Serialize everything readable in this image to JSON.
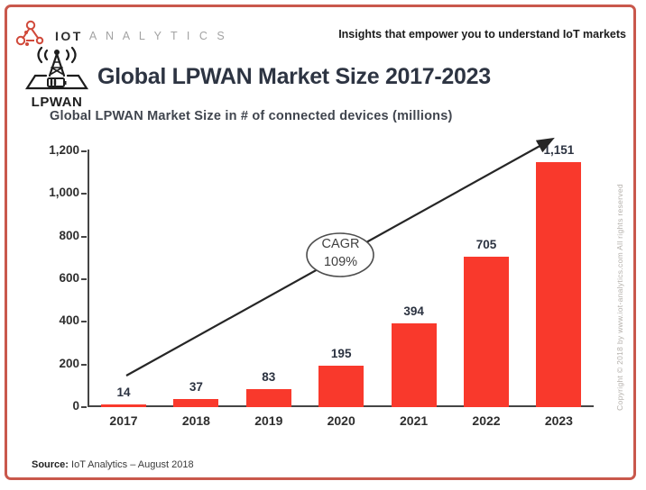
{
  "header": {
    "logo_primary": "IOT",
    "logo_secondary": "A N A L Y T I C S",
    "logo_icon": "network-nodes-icon",
    "tagline": "Insights that empower you to understand IoT markets"
  },
  "title_block": {
    "lpwan_icon": "lpwan-antenna-icon",
    "lpwan_label": "LPWAN",
    "title": "Global LPWAN Market Size 2017-2023"
  },
  "chart_data": {
    "type": "bar",
    "title": "Global LPWAN Market Size in # of connected devices (millions)",
    "categories": [
      "2017",
      "2018",
      "2019",
      "2020",
      "2021",
      "2022",
      "2023"
    ],
    "values": [
      14,
      37,
      83,
      195,
      394,
      705,
      1151
    ],
    "value_labels": [
      "14",
      "37",
      "83",
      "195",
      "394",
      "705",
      "1,151"
    ],
    "xlabel": "",
    "ylabel": "",
    "ylim": [
      0,
      1200
    ],
    "yticks": [
      0,
      200,
      400,
      600,
      800,
      1000,
      1200
    ],
    "ytick_labels": [
      "0",
      "200",
      "400",
      "600",
      "800",
      "1,000",
      "1,200"
    ],
    "grid": false,
    "legend_position": "none",
    "bar_color": "#f9392c",
    "annotation": {
      "line1": "CAGR",
      "line2": "109%",
      "shape": "ellipse-on-trend-arrow"
    }
  },
  "footer": {
    "source_label": "Source:",
    "source_text": " IoT Analytics – August 2018"
  },
  "side_note": "Copyright © 2018 by www.iot-analytics.com All rights reserved",
  "colors": {
    "accent_red": "#f9392c",
    "border_red": "#c9584c",
    "title_dark": "#2d3442",
    "axis_gray": "#454545"
  }
}
